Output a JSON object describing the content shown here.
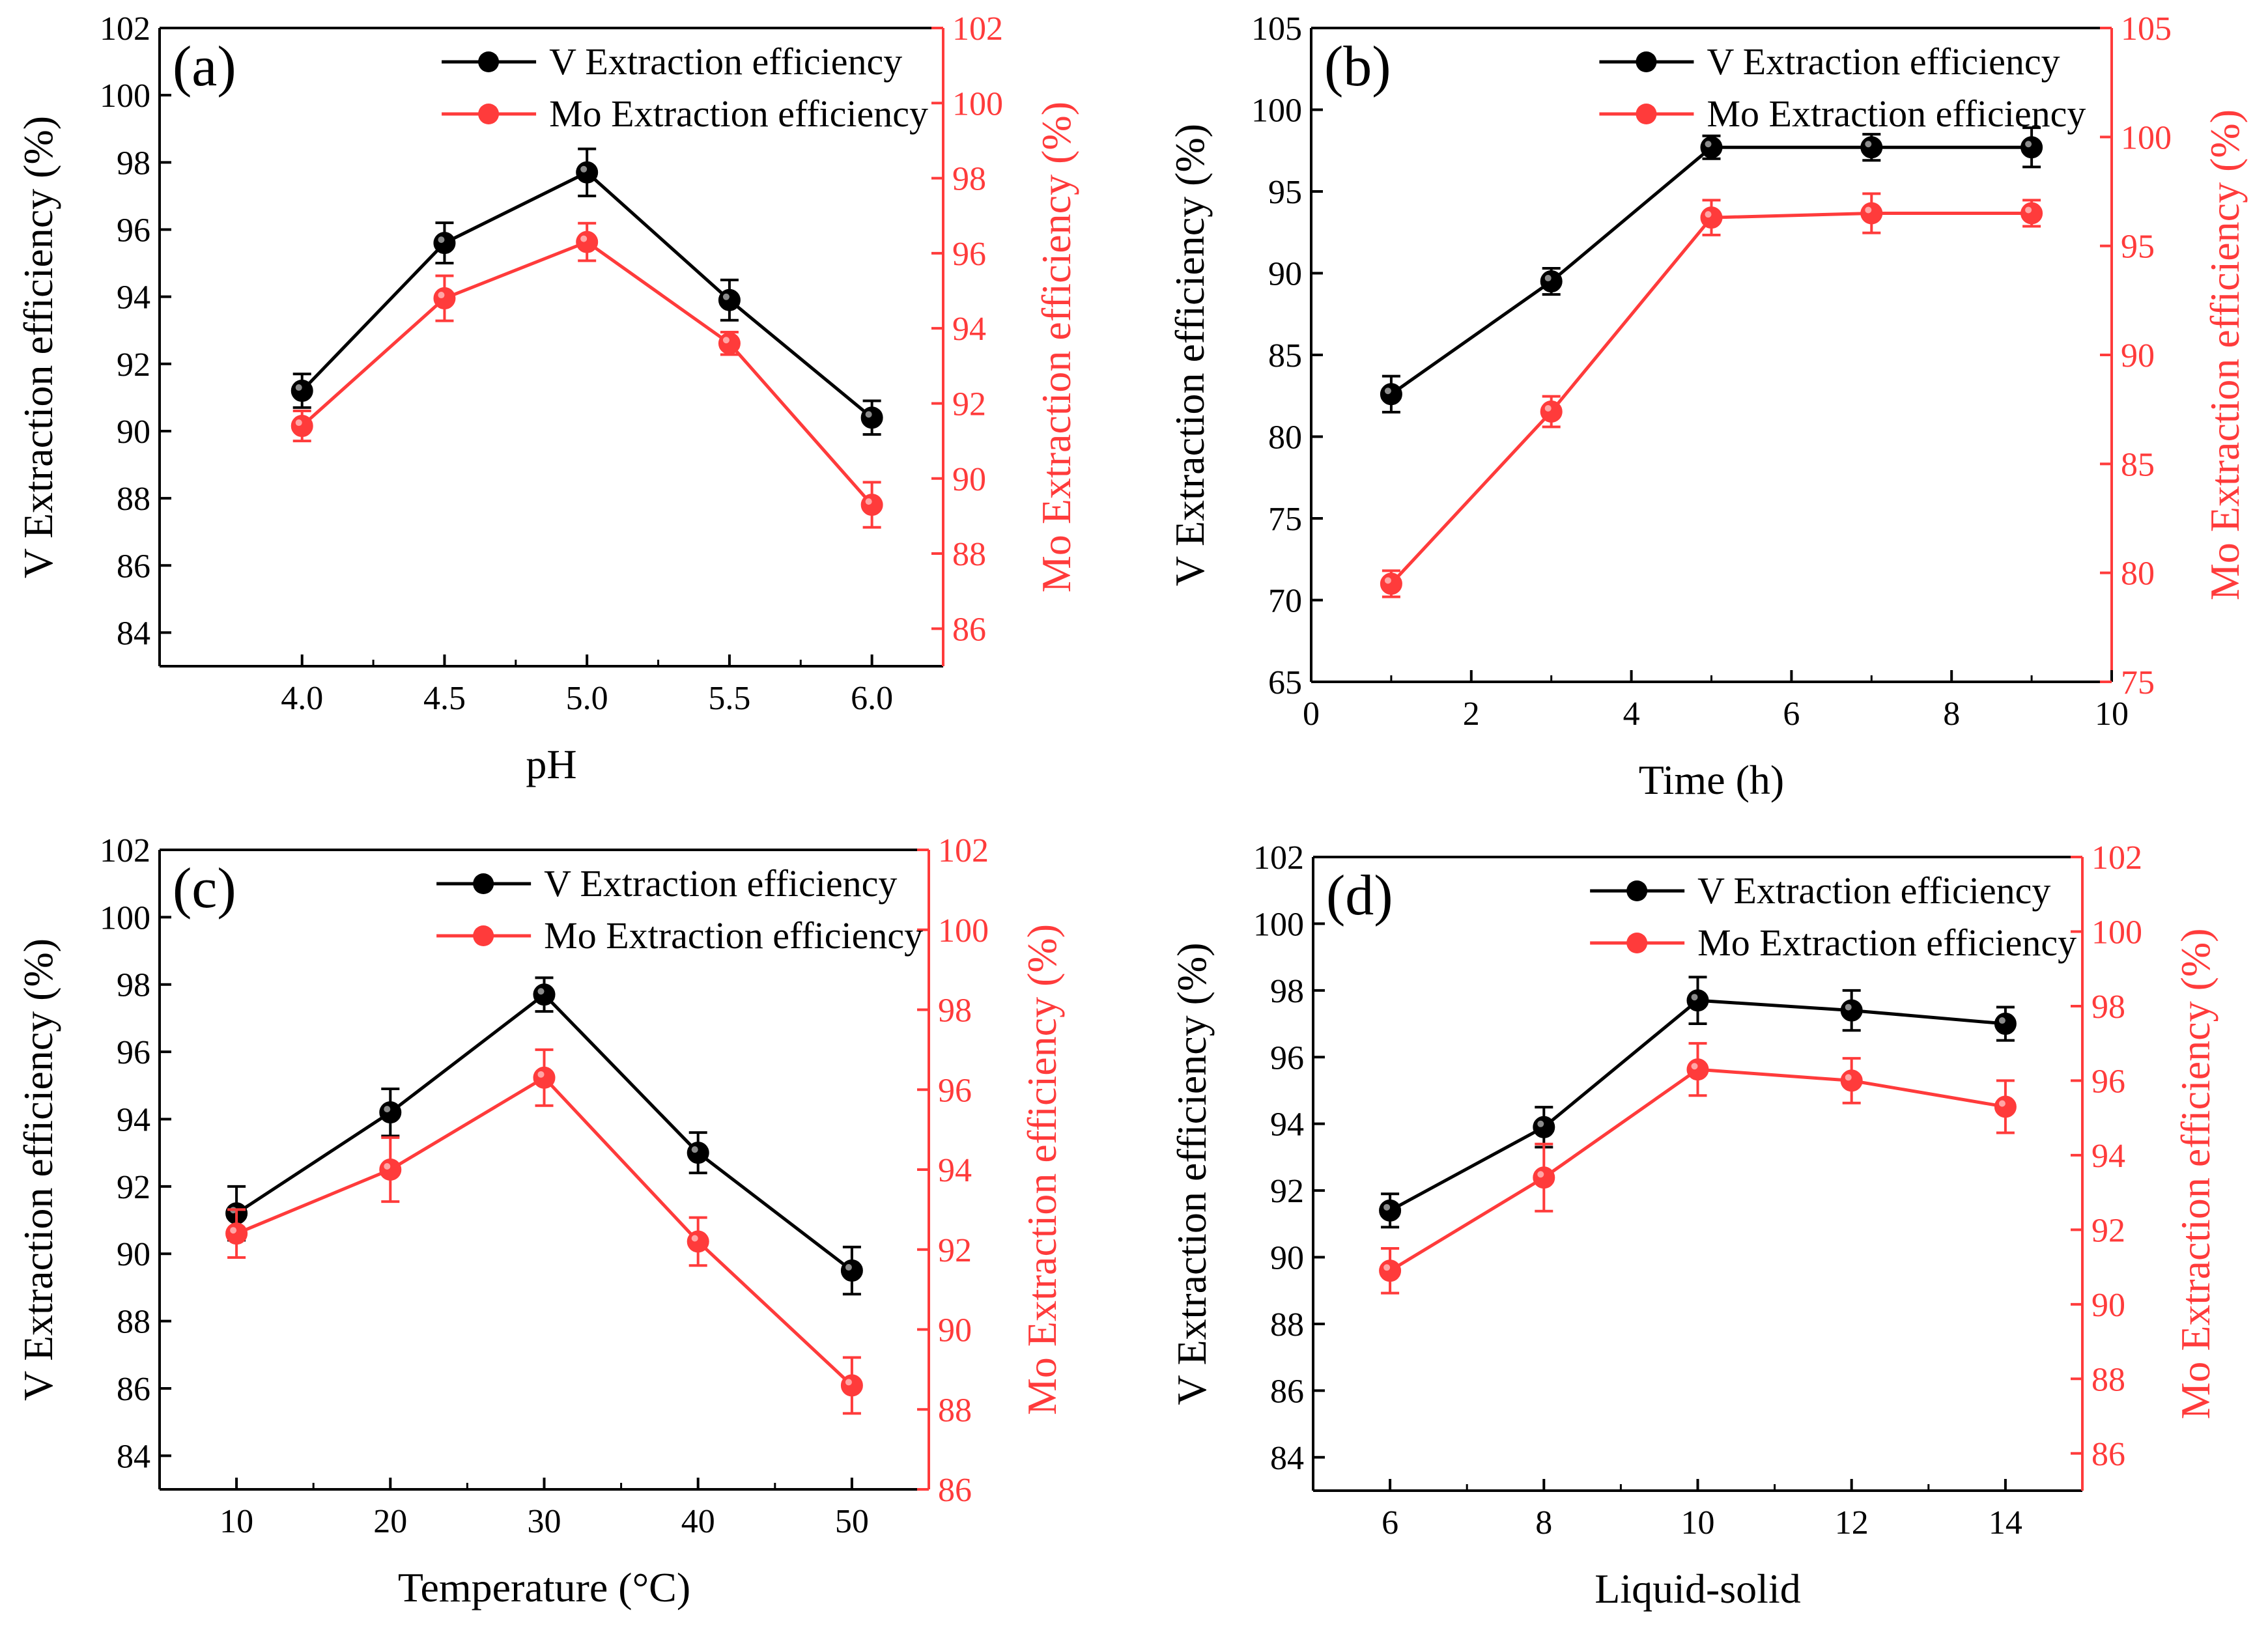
{
  "colors": {
    "v_series": "#000000",
    "mo_series": "#ff3b3b",
    "axis": "#000000"
  },
  "chart_data": [
    {
      "panel": "(a)",
      "type": "line",
      "xlabel": "pH",
      "ylabel_left": "V Extraction efficiency (%)",
      "ylabel_right": "Mo Extraction efficiency (%)",
      "xlim": [
        3.5,
        6.25
      ],
      "xticks": [
        4.0,
        4.5,
        5.0,
        5.5,
        6.0
      ],
      "xtick_labels": [
        "4.0",
        "4.5",
        "5.0",
        "5.5",
        "6.0"
      ],
      "ylim_left": [
        83,
        102
      ],
      "yticks_left": [
        84,
        86,
        88,
        90,
        92,
        94,
        96,
        98,
        100,
        102
      ],
      "ylim_right": [
        85,
        102
      ],
      "yticks_right": [
        86,
        88,
        90,
        92,
        94,
        96,
        98,
        100,
        102
      ],
      "legend": [
        "V Extraction efficiency",
        "Mo Extraction efficiency"
      ],
      "series": [
        {
          "name": "V Extraction efficiency",
          "axis": "left",
          "x": [
            4.0,
            4.5,
            5.0,
            5.5,
            6.0
          ],
          "values": [
            91.2,
            95.6,
            97.7,
            93.9,
            90.4
          ],
          "errors": [
            0.5,
            0.6,
            0.7,
            0.6,
            0.5
          ]
        },
        {
          "name": "Mo Extraction efficiency",
          "axis": "right",
          "x": [
            4.0,
            4.5,
            5.0,
            5.5,
            6.0
          ],
          "values": [
            91.4,
            94.8,
            96.3,
            93.6,
            89.3
          ],
          "errors": [
            0.4,
            0.6,
            0.5,
            0.3,
            0.6
          ]
        }
      ]
    },
    {
      "panel": "(b)",
      "type": "line",
      "xlabel": "Time (h)",
      "ylabel_left": "V Extraction efficiency (%)",
      "ylabel_right": "Mo Extraction efficiency (%)",
      "xlim": [
        0,
        10
      ],
      "xticks": [
        0,
        2,
        4,
        6,
        8,
        10
      ],
      "xtick_labels": [
        "0",
        "2",
        "4",
        "6",
        "8",
        "10"
      ],
      "ylim_left": [
        65,
        105
      ],
      "yticks_left": [
        65,
        70,
        75,
        80,
        85,
        90,
        95,
        100,
        105
      ],
      "ylim_right": [
        75,
        105
      ],
      "yticks_right": [
        75,
        80,
        85,
        90,
        95,
        100,
        105
      ],
      "legend": [
        "V Extraction efficiency",
        "Mo Extraction efficiency"
      ],
      "series": [
        {
          "name": "V Extraction efficiency",
          "axis": "left",
          "x": [
            1,
            3,
            5,
            7,
            9
          ],
          "values": [
            82.6,
            89.5,
            97.7,
            97.7,
            97.7
          ],
          "errors": [
            1.1,
            0.8,
            0.7,
            0.8,
            1.2
          ]
        },
        {
          "name": "Mo Extraction efficiency",
          "axis": "right",
          "x": [
            1,
            3,
            5,
            7,
            9
          ],
          "values": [
            79.5,
            87.4,
            96.3,
            96.5,
            96.5
          ],
          "errors": [
            0.6,
            0.7,
            0.8,
            0.9,
            0.6
          ]
        }
      ]
    },
    {
      "panel": "(c)",
      "type": "line",
      "xlabel": "Temperature (°C)",
      "ylabel_left": "V Extraction efficiency (%)",
      "ylabel_right": "Mo Extraction efficiency (%)",
      "xlim": [
        5,
        55
      ],
      "xticks": [
        10,
        20,
        30,
        40,
        50
      ],
      "xtick_labels": [
        "10",
        "20",
        "30",
        "40",
        "50"
      ],
      "ylim_left": [
        83,
        102
      ],
      "yticks_left": [
        84,
        86,
        88,
        90,
        92,
        94,
        96,
        98,
        100,
        102
      ],
      "ylim_right": [
        86,
        102
      ],
      "yticks_right": [
        86,
        88,
        90,
        92,
        94,
        96,
        98,
        100,
        102
      ],
      "legend": [
        "V Extraction efficiency",
        "Mo Extraction efficiency"
      ],
      "series": [
        {
          "name": "V Extraction efficiency",
          "axis": "left",
          "x": [
            10,
            20,
            30,
            40,
            50
          ],
          "values": [
            91.2,
            94.2,
            97.7,
            93.0,
            89.5
          ],
          "errors": [
            0.8,
            0.7,
            0.5,
            0.6,
            0.7
          ]
        },
        {
          "name": "Mo Extraction efficiency",
          "axis": "right",
          "x": [
            10,
            20,
            30,
            40,
            50
          ],
          "values": [
            92.4,
            94.0,
            96.3,
            92.2,
            88.6
          ],
          "errors": [
            0.6,
            0.8,
            0.7,
            0.6,
            0.7
          ]
        }
      ]
    },
    {
      "panel": "(d)",
      "type": "line",
      "xlabel": "Liquid-solid",
      "ylabel_left": "V Extraction efficiency (%)",
      "ylabel_right": "Mo Extraction efficiency (%)",
      "xlim": [
        5,
        15
      ],
      "xticks": [
        6,
        8,
        10,
        12,
        14
      ],
      "xtick_labels": [
        "6",
        "8",
        "10",
        "12",
        "14"
      ],
      "ylim_left": [
        83,
        102
      ],
      "yticks_left": [
        84,
        86,
        88,
        90,
        92,
        94,
        96,
        98,
        100,
        102
      ],
      "ylim_right": [
        85,
        102
      ],
      "yticks_right": [
        86,
        88,
        90,
        92,
        94,
        96,
        98,
        100,
        102
      ],
      "legend": [
        "V Extraction efficiency",
        "Mo Extraction efficiency"
      ],
      "series": [
        {
          "name": "V Extraction efficiency",
          "axis": "left",
          "x": [
            6,
            8,
            10,
            12,
            14
          ],
          "values": [
            91.4,
            93.9,
            97.7,
            97.4,
            97.0
          ],
          "errors": [
            0.5,
            0.6,
            0.7,
            0.6,
            0.5
          ]
        },
        {
          "name": "Mo Extraction efficiency",
          "axis": "right",
          "x": [
            6,
            8,
            10,
            12,
            14
          ],
          "values": [
            90.9,
            93.4,
            96.3,
            96.0,
            95.3
          ],
          "errors": [
            0.6,
            0.9,
            0.7,
            0.6,
            0.7
          ]
        }
      ]
    }
  ]
}
